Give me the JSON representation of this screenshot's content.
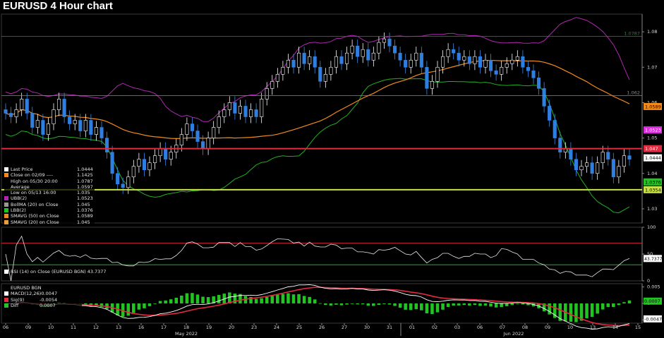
{
  "title": "EURUSD 4 Hour chart",
  "chart_data": {
    "type": "candlestick",
    "main": {
      "ylim": [
        1.026,
        1.085
      ],
      "y_ticks": [
        1.03,
        1.04,
        1.05,
        1.06,
        1.07,
        1.08
      ],
      "y_tick_labels": [
        "1.03",
        "1.04",
        "1.05",
        "1.06",
        "1.07",
        "1.08"
      ],
      "close_series": [
        1.057,
        1.056,
        1.058,
        1.061,
        1.057,
        1.053,
        1.055,
        1.051,
        1.054,
        1.058,
        1.061,
        1.056,
        1.054,
        1.055,
        1.052,
        1.055,
        1.051,
        1.053,
        1.05,
        1.046,
        1.04,
        1.037,
        1.036,
        1.039,
        1.042,
        1.044,
        1.041,
        1.043,
        1.045,
        1.047,
        1.044,
        1.046,
        1.048,
        1.051,
        1.054,
        1.052,
        1.049,
        1.047,
        1.05,
        1.053,
        1.056,
        1.058,
        1.06,
        1.057,
        1.059,
        1.056,
        1.058,
        1.056,
        1.061,
        1.064,
        1.066,
        1.068,
        1.07,
        1.072,
        1.07,
        1.074,
        1.071,
        1.073,
        1.07,
        1.066,
        1.068,
        1.07,
        1.073,
        1.071,
        1.074,
        1.076,
        1.073,
        1.075,
        1.072,
        1.074,
        1.077,
        1.078,
        1.076,
        1.074,
        1.072,
        1.07,
        1.072,
        1.074,
        1.07,
        1.064,
        1.066,
        1.07,
        1.073,
        1.075,
        1.074,
        1.072,
        1.073,
        1.071,
        1.073,
        1.07,
        1.072,
        1.069,
        1.068,
        1.07,
        1.071,
        1.072,
        1.073,
        1.07,
        1.069,
        1.067,
        1.064,
        1.059,
        1.055,
        1.05,
        1.046,
        1.047,
        1.044,
        1.041,
        1.042,
        1.043,
        1.04,
        1.043,
        1.046,
        1.044,
        1.039,
        1.042,
        1.045,
        1.044
      ],
      "horizontal_lines": [
        {
          "value": 1.0787,
          "label": "1.0787",
          "color": "#2a8a2a",
          "style": "thin"
        },
        {
          "value": 1.062,
          "label": "1.062",
          "color": "#888888",
          "style": "thin"
        },
        {
          "value": 1.047,
          "label": "1.047",
          "color": "#e32b3f",
          "style": "thick"
        },
        {
          "value": 1.0354,
          "label": "1.0354",
          "color": "#c7e04a",
          "style": "thick"
        }
      ],
      "price_tags": [
        {
          "label": "1.0589",
          "value": 1.0589,
          "bg": "#f08b1a",
          "fg": "#000000"
        },
        {
          "label": "1.0523",
          "value": 1.0523,
          "bg": "#e02be0",
          "fg": "#ffffff"
        },
        {
          "label": "1.047",
          "value": 1.047,
          "bg": "#e32b3f",
          "fg": "#ffffff"
        },
        {
          "label": "1.0444",
          "value": 1.0444,
          "bg": "#ffffff",
          "fg": "#000000"
        },
        {
          "label": "1.0376",
          "value": 1.0376,
          "bg": "#22c422",
          "fg": "#000000"
        },
        {
          "label": "1.0354",
          "value": 1.0354,
          "bg": "#c7e04a",
          "fg": "#000000"
        }
      ],
      "legend": [
        {
          "label": "Last Price",
          "value": "1.0444",
          "swatch": "#ffffff"
        },
        {
          "label": "Close on 02/09  ----",
          "value": "1.1425",
          "swatch": "#f08b1a"
        },
        {
          "label": "High on 05/30 20:00",
          "value": "1.0787",
          "swatch": ""
        },
        {
          "label": "Average",
          "value": "1.0597",
          "swatch": ""
        },
        {
          "label": "Low on 05/13 16:00",
          "value": "1.035",
          "swatch": ""
        },
        {
          "label": "UBB(2)",
          "value": "1.0523",
          "swatch": "#b026b0"
        },
        {
          "label": "BollMA (20)   on Close",
          "value": "1.045",
          "swatch": "#999999"
        },
        {
          "label": "LBB(2)",
          "value": "1.0376",
          "swatch": "#22c422"
        },
        {
          "label": "SMAVG (50)   on Close",
          "value": "1.0589",
          "swatch": "#f08b1a"
        },
        {
          "label": "SMAVG (20)   on Close",
          "value": "1.045",
          "swatch": "#e8a038"
        }
      ]
    },
    "rsi": {
      "label": "RSI (14)  on Close (EURUSD BGN) 43.7377",
      "ylim": [
        0,
        100
      ],
      "y_ticks": [
        0,
        50,
        100
      ],
      "overbought": 70,
      "oversold": 30,
      "last_label": "43.7377"
    },
    "macd": {
      "legend": [
        {
          "label": "EURUSD BGN",
          "value": "",
          "swatch": ""
        },
        {
          "label": "MACD(12,26)",
          "value": "-0.0047",
          "swatch": "#ffffff"
        },
        {
          "label": "Sig(9)",
          "value": "-0.0054",
          "swatch": "#e32b3f"
        },
        {
          "label": "Diff",
          "value": "0.0007",
          "swatch": "#22c422"
        }
      ],
      "ylim": [
        -0.006,
        0.006
      ],
      "y_ticks": [
        0.005,
        0,
        -0.005
      ],
      "y_tick_labels": [
        "0.005",
        "0",
        "-0.005"
      ],
      "tags": [
        {
          "label": "0.0007",
          "value": 0.0007,
          "bg": "#22c422",
          "fg": "#000000"
        },
        {
          "label": "-0.0047",
          "value": -0.0047,
          "bg": "#ffffff",
          "fg": "#000000"
        }
      ]
    },
    "x_axis": {
      "tick_labels": [
        "06",
        "09",
        "10",
        "11",
        "12",
        "13",
        "16",
        "17",
        "18",
        "19",
        "20",
        "23",
        "24",
        "25",
        "26",
        "27",
        "30",
        "31",
        "01",
        "02",
        "03",
        "06",
        "07",
        "08",
        "09",
        "10",
        "13",
        "14",
        "15"
      ],
      "month_labels": [
        "May 2022",
        "Jun 2022"
      ]
    }
  }
}
